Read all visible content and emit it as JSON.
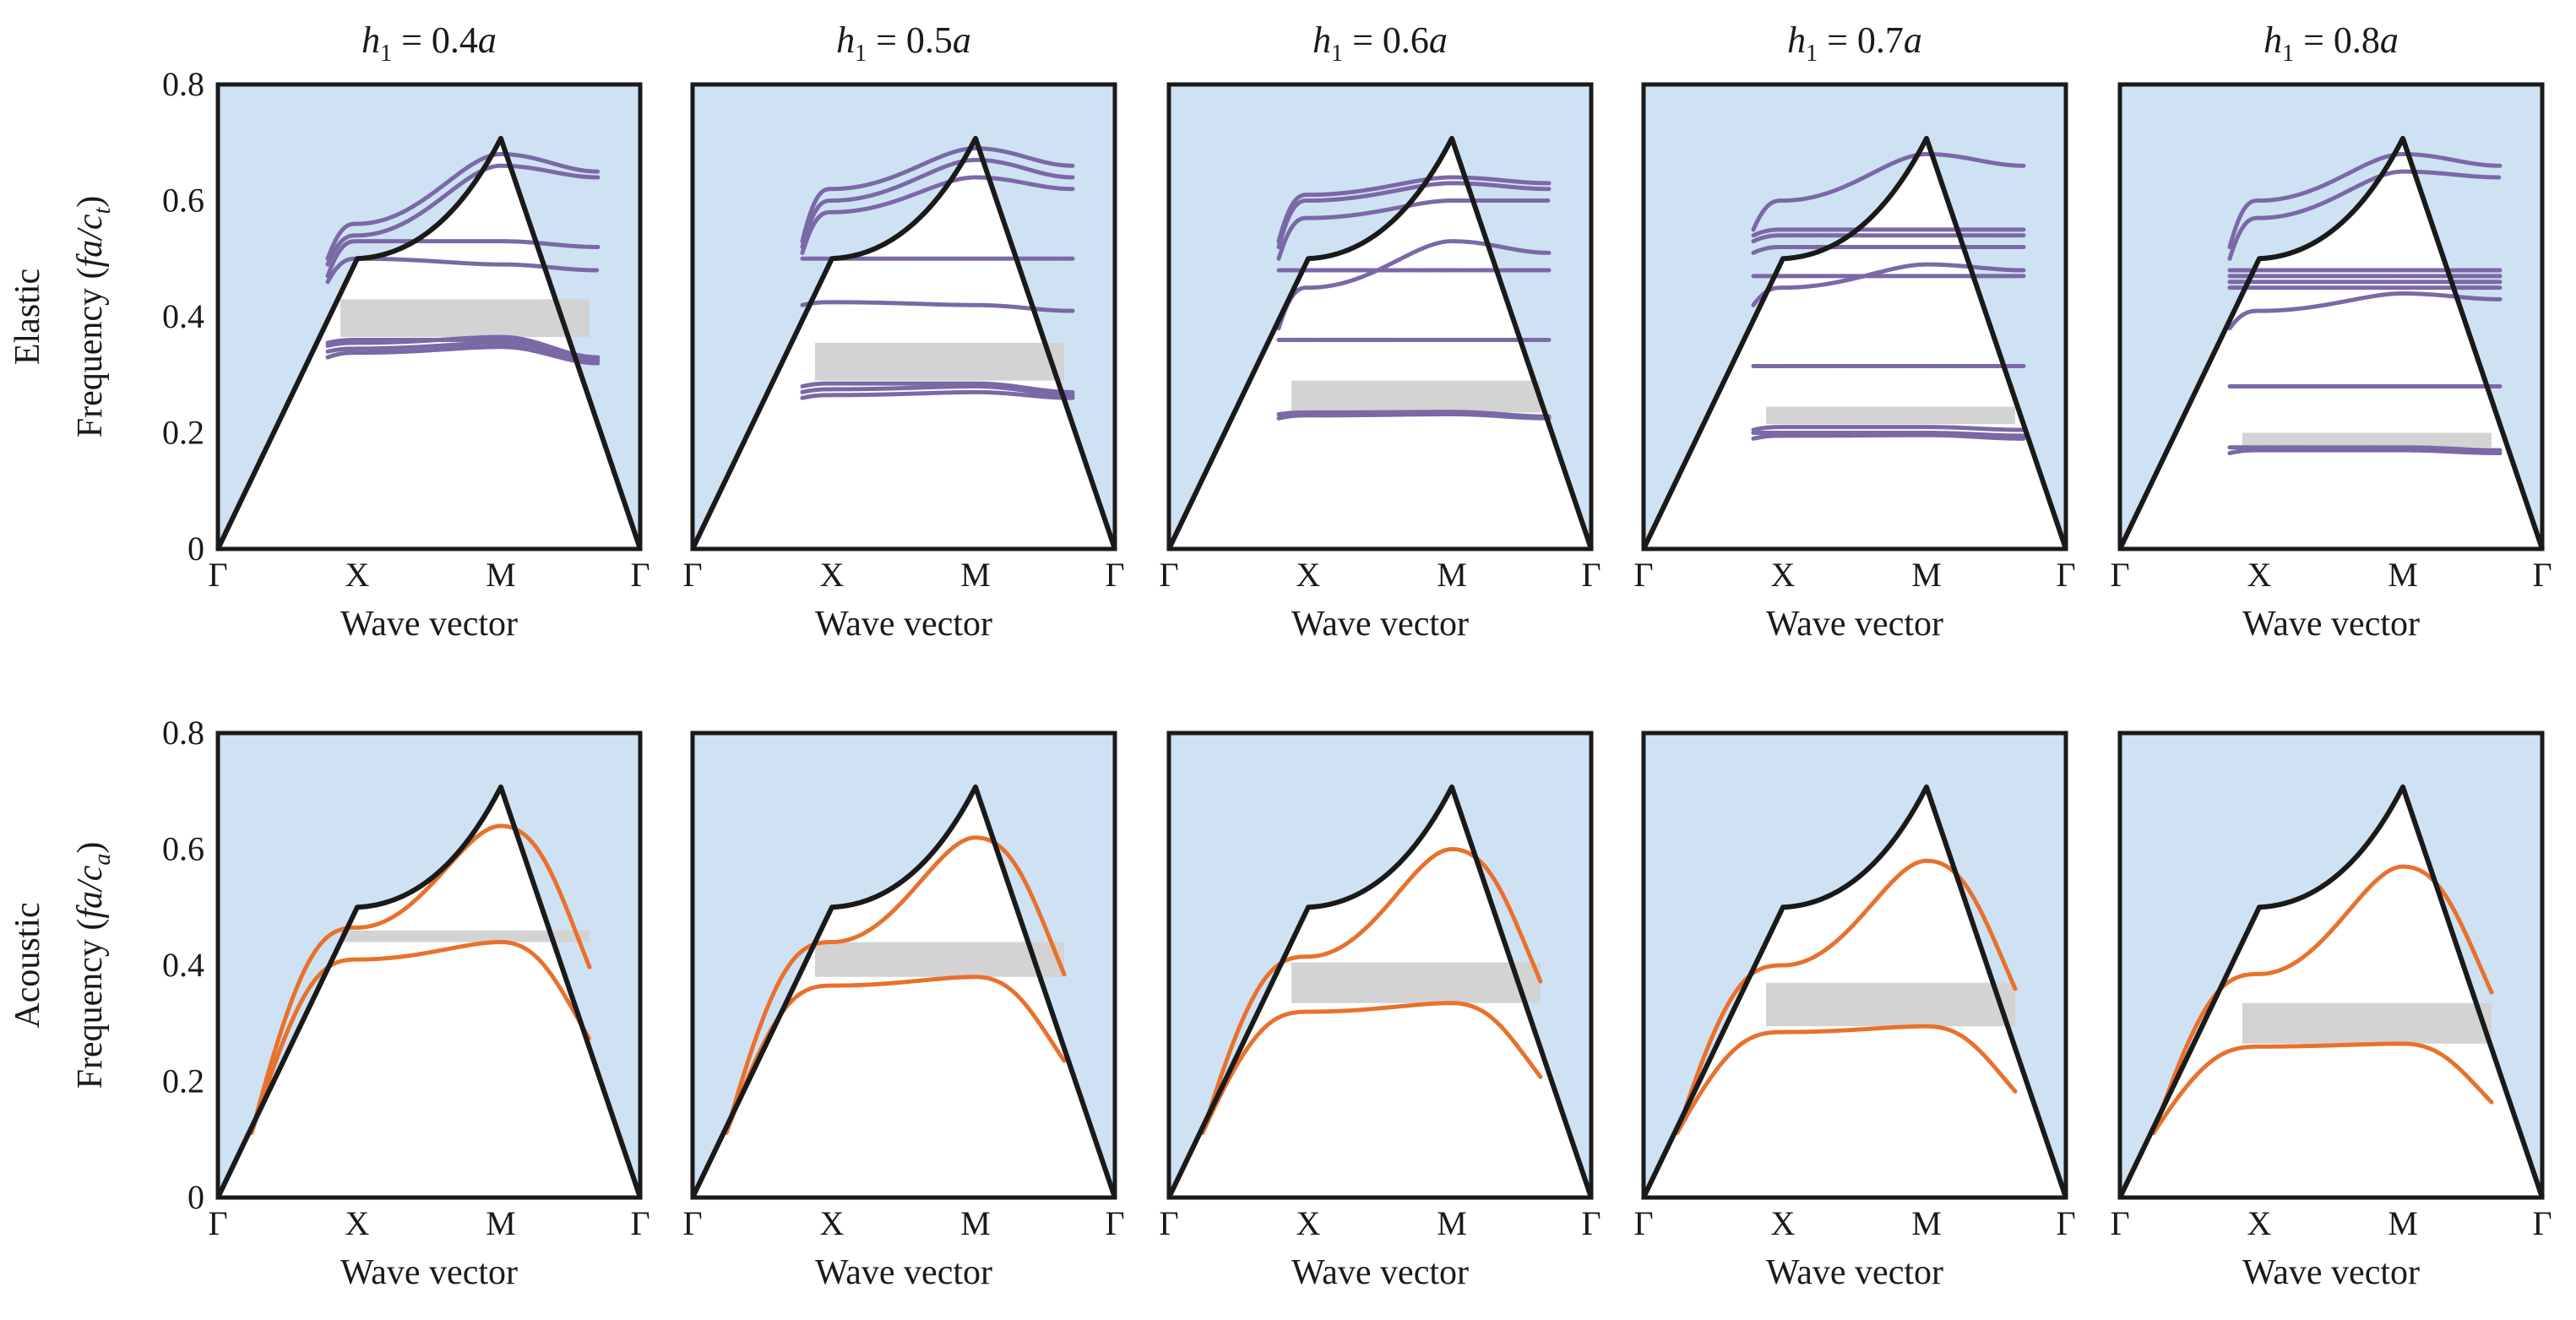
{
  "chart_data": [
    {
      "type": "line",
      "row": "elastic",
      "title_main": "h",
      "title_sub": "1",
      "title_rest": " = 0.4",
      "title_italic": "a",
      "row_label": "Elastic",
      "ylabel_main": "Frequency (",
      "ylabel_italic": "fa/c",
      "ylabel_sub": "t",
      "ylabel_close": ")",
      "xlabel": "Wave vector",
      "xticks": [
        "Γ",
        "X",
        "M",
        "Γ"
      ],
      "yticks": [
        "0",
        "0.2",
        "0.4",
        "0.6",
        "0.8"
      ],
      "ylim": [
        0,
        0.8
      ],
      "light_line": [
        0,
        0.5,
        0.7071,
        0
      ],
      "band_gap": [
        0.365,
        0.43
      ],
      "series": [
        {
          "values": [
            0.33,
            0.338,
            0.348,
            0.32
          ]
        },
        {
          "values": [
            0.34,
            0.345,
            0.355,
            0.325
          ]
        },
        {
          "values": [
            0.35,
            0.355,
            0.365,
            0.33
          ]
        },
        {
          "values": [
            0.355,
            0.36,
            0.36,
            0.33
          ]
        },
        {
          "values": [
            0.46,
            0.5,
            0.49,
            0.48
          ]
        },
        {
          "values": [
            0.47,
            0.53,
            0.53,
            0.52
          ]
        },
        {
          "values": [
            0.49,
            0.54,
            0.66,
            0.64
          ]
        },
        {
          "values": [
            0.5,
            0.56,
            0.68,
            0.65
          ]
        }
      ]
    },
    {
      "type": "line",
      "row": "elastic",
      "title_main": "h",
      "title_sub": "1",
      "title_rest": " = 0.5",
      "title_italic": "a",
      "xlabel": "Wave vector",
      "xticks": [
        "Γ",
        "X",
        "M",
        "Γ"
      ],
      "ylim": [
        0,
        0.8
      ],
      "light_line": [
        0,
        0.5,
        0.7071,
        0
      ],
      "band_gap": [
        0.29,
        0.355
      ],
      "series": [
        {
          "values": [
            0.26,
            0.265,
            0.27,
            0.26
          ]
        },
        {
          "values": [
            0.27,
            0.275,
            0.28,
            0.265
          ]
        },
        {
          "values": [
            0.28,
            0.285,
            0.285,
            0.27
          ]
        },
        {
          "values": [
            0.42,
            0.425,
            0.42,
            0.41
          ]
        },
        {
          "values": [
            0.5,
            0.5,
            0.5,
            0.5
          ]
        },
        {
          "values": [
            0.51,
            0.58,
            0.64,
            0.62
          ]
        },
        {
          "values": [
            0.52,
            0.6,
            0.67,
            0.64
          ]
        },
        {
          "values": [
            0.53,
            0.62,
            0.69,
            0.66
          ]
        }
      ]
    },
    {
      "type": "line",
      "row": "elastic",
      "title_main": "h",
      "title_sub": "1",
      "title_rest": " = 0.6",
      "title_italic": "a",
      "xlabel": "Wave vector",
      "xticks": [
        "Γ",
        "X",
        "M",
        "Γ"
      ],
      "ylim": [
        0,
        0.8
      ],
      "light_line": [
        0,
        0.5,
        0.7071,
        0
      ],
      "band_gap": [
        0.235,
        0.29
      ],
      "series": [
        {
          "values": [
            0.225,
            0.23,
            0.232,
            0.225
          ]
        },
        {
          "values": [
            0.232,
            0.235,
            0.236,
            0.228
          ]
        },
        {
          "values": [
            0.36,
            0.36,
            0.36,
            0.36
          ]
        },
        {
          "values": [
            0.38,
            0.45,
            0.53,
            0.51
          ]
        },
        {
          "values": [
            0.48,
            0.48,
            0.48,
            0.48
          ]
        },
        {
          "values": [
            0.5,
            0.57,
            0.6,
            0.6
          ]
        },
        {
          "values": [
            0.52,
            0.6,
            0.63,
            0.62
          ]
        },
        {
          "values": [
            0.53,
            0.61,
            0.64,
            0.63
          ]
        }
      ]
    },
    {
      "type": "line",
      "row": "elastic",
      "title_main": "h",
      "title_sub": "1",
      "title_rest": " = 0.7",
      "title_italic": "a",
      "xlabel": "Wave vector",
      "xticks": [
        "Γ",
        "X",
        "M",
        "Γ"
      ],
      "ylim": [
        0,
        0.8
      ],
      "light_line": [
        0,
        0.5,
        0.7071,
        0
      ],
      "band_gap": [
        0.215,
        0.245
      ],
      "series": [
        {
          "values": [
            0.19,
            0.195,
            0.196,
            0.19
          ]
        },
        {
          "values": [
            0.2,
            0.2,
            0.2,
            0.195
          ]
        },
        {
          "values": [
            0.205,
            0.21,
            0.21,
            0.205
          ]
        },
        {
          "values": [
            0.315,
            0.315,
            0.315,
            0.315
          ]
        },
        {
          "values": [
            0.42,
            0.45,
            0.49,
            0.48
          ]
        },
        {
          "values": [
            0.47,
            0.47,
            0.47,
            0.47
          ]
        },
        {
          "values": [
            0.51,
            0.52,
            0.52,
            0.52
          ]
        },
        {
          "values": [
            0.53,
            0.54,
            0.54,
            0.54
          ]
        },
        {
          "values": [
            0.54,
            0.55,
            0.55,
            0.55
          ]
        },
        {
          "values": [
            0.55,
            0.6,
            0.68,
            0.66
          ]
        }
      ]
    },
    {
      "type": "line",
      "row": "elastic",
      "title_main": "h",
      "title_sub": "1",
      "title_rest": " = 0.8",
      "title_italic": "a",
      "xlabel": "Wave vector",
      "xticks": [
        "Γ",
        "X",
        "M",
        "Γ"
      ],
      "ylim": [
        0,
        0.8
      ],
      "light_line": [
        0,
        0.5,
        0.7071,
        0
      ],
      "band_gap": [
        0.175,
        0.2
      ],
      "series": [
        {
          "values": [
            0.165,
            0.17,
            0.17,
            0.165
          ]
        },
        {
          "values": [
            0.175,
            0.175,
            0.175,
            0.17
          ]
        },
        {
          "values": [
            0.28,
            0.28,
            0.28,
            0.28
          ]
        },
        {
          "values": [
            0.38,
            0.41,
            0.44,
            0.43
          ]
        },
        {
          "values": [
            0.45,
            0.45,
            0.45,
            0.45
          ]
        },
        {
          "values": [
            0.46,
            0.46,
            0.46,
            0.46
          ]
        },
        {
          "values": [
            0.47,
            0.47,
            0.47,
            0.47
          ]
        },
        {
          "values": [
            0.48,
            0.48,
            0.48,
            0.48
          ]
        },
        {
          "values": [
            0.5,
            0.57,
            0.65,
            0.64
          ]
        },
        {
          "values": [
            0.52,
            0.6,
            0.68,
            0.66
          ]
        }
      ]
    },
    {
      "type": "line",
      "row": "acoustic",
      "row_label": "Acoustic",
      "ylabel_main": "Frequency (",
      "ylabel_italic": "fa/c",
      "ylabel_sub": "a",
      "ylabel_close": ")",
      "xlabel": "Wave vector",
      "xticks": [
        "Γ",
        "X",
        "M",
        "Γ"
      ],
      "yticks": [
        "0",
        "0.2",
        "0.4",
        "0.6",
        "0.8"
      ],
      "ylim": [
        0,
        0.8
      ],
      "light_line": [
        0,
        0.5,
        0.7071,
        0
      ],
      "band_gap": [
        0.44,
        0.46
      ],
      "series": [
        {
          "values": [
            0.0,
            0.41,
            0.44,
            0.0
          ]
        },
        {
          "values": [
            0.0,
            0.465,
            0.64,
            0.0
          ]
        }
      ]
    },
    {
      "type": "line",
      "row": "acoustic",
      "xlabel": "Wave vector",
      "xticks": [
        "Γ",
        "X",
        "M",
        "Γ"
      ],
      "ylim": [
        0,
        0.8
      ],
      "light_line": [
        0,
        0.5,
        0.7071,
        0
      ],
      "band_gap": [
        0.38,
        0.44
      ],
      "series": [
        {
          "values": [
            0.0,
            0.365,
            0.38,
            0.0
          ]
        },
        {
          "values": [
            0.0,
            0.44,
            0.62,
            0.0
          ]
        }
      ]
    },
    {
      "type": "line",
      "row": "acoustic",
      "xlabel": "Wave vector",
      "xticks": [
        "Γ",
        "X",
        "M",
        "Γ"
      ],
      "ylim": [
        0,
        0.8
      ],
      "light_line": [
        0,
        0.5,
        0.7071,
        0
      ],
      "band_gap": [
        0.335,
        0.405
      ],
      "series": [
        {
          "values": [
            0.0,
            0.32,
            0.335,
            0.0
          ]
        },
        {
          "values": [
            0.0,
            0.415,
            0.6,
            0.0
          ]
        }
      ]
    },
    {
      "type": "line",
      "row": "acoustic",
      "xlabel": "Wave vector",
      "xticks": [
        "Γ",
        "X",
        "M",
        "Γ"
      ],
      "ylim": [
        0,
        0.8
      ],
      "light_line": [
        0,
        0.5,
        0.7071,
        0
      ],
      "band_gap": [
        0.295,
        0.37
      ],
      "series": [
        {
          "values": [
            0.0,
            0.285,
            0.295,
            0.0
          ]
        },
        {
          "values": [
            0.0,
            0.4,
            0.58,
            0.0
          ]
        }
      ]
    },
    {
      "type": "line",
      "row": "acoustic",
      "xlabel": "Wave vector",
      "xticks": [
        "Γ",
        "X",
        "M",
        "Γ"
      ],
      "ylim": [
        0,
        0.8
      ],
      "light_line": [
        0,
        0.5,
        0.7071,
        0
      ],
      "band_gap": [
        0.265,
        0.335
      ],
      "series": [
        {
          "values": [
            0.0,
            0.26,
            0.265,
            0.0
          ]
        },
        {
          "values": [
            0.0,
            0.385,
            0.57,
            0.0
          ]
        }
      ]
    }
  ],
  "colors": {
    "outside_light_cone": "#cfe2f3",
    "band_gap": "#d3d3d3",
    "elastic_bands": "#7b68a6",
    "acoustic_bands": "#e8712c",
    "frame": "#1a1a1a"
  }
}
